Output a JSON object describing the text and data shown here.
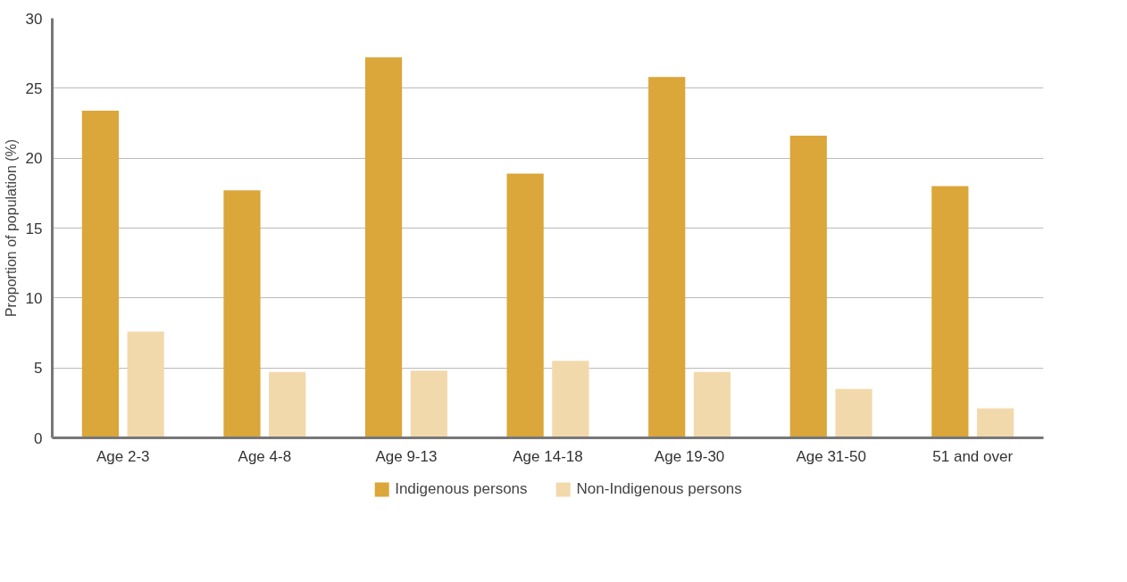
{
  "chart_data": {
    "type": "bar",
    "ylabel": "Proportion of population (%)",
    "categories": [
      "Age 2-3",
      "Age 4-8",
      "Age 9-13",
      "Age 14-18",
      "Age 19-30",
      "Age 31-50",
      "51 and over"
    ],
    "series": [
      {
        "name": "Indigenous persons",
        "color": "#dba63a",
        "values": [
          23.4,
          17.7,
          27.2,
          18.9,
          25.8,
          21.6,
          18.0
        ]
      },
      {
        "name": "Non-Indigenous persons",
        "color": "#f2d9ab",
        "values": [
          7.6,
          4.7,
          4.8,
          5.5,
          4.7,
          3.5,
          2.1
        ]
      }
    ],
    "ylim": [
      0,
      30
    ],
    "yticks": [
      0,
      5,
      10,
      15,
      20,
      25,
      30
    ],
    "grid": "y",
    "legend": "bottom"
  }
}
